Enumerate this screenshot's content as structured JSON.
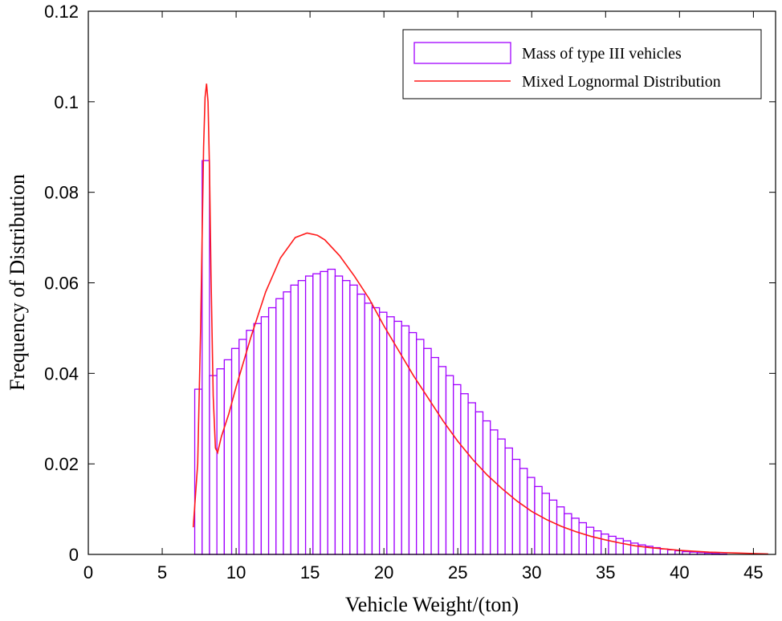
{
  "chart_data": {
    "type": "bar",
    "xlabel": "Vehicle Weight/(ton)",
    "ylabel": "Frequency of Distribution",
    "xlim": [
      0,
      46.5
    ],
    "ylim": [
      0,
      0.12
    ],
    "xticks": [
      0,
      5,
      10,
      15,
      20,
      25,
      30,
      35,
      40,
      45
    ],
    "yticks": [
      0,
      0.02,
      0.04,
      0.06,
      0.08,
      0.1,
      0.12
    ],
    "xtick_labels": [
      "0",
      "5",
      "10",
      "15",
      "20",
      "25",
      "30",
      "35",
      "40",
      "45"
    ],
    "ytick_labels": [
      "0",
      "0.02",
      "0.04",
      "0.06",
      "0.08",
      "0.1",
      "0.12"
    ],
    "legend_position": "top-right",
    "colors": {
      "histogram": "#a100ff",
      "fit_line": "#ff1a1a",
      "frame": "#000000"
    },
    "series": [
      {
        "name": "Mass of type III vehicles",
        "kind": "histogram",
        "bin_start": 7.2,
        "bin_width": 0.5,
        "values": [
          0.0365,
          0.087,
          0.0395,
          0.041,
          0.043,
          0.0455,
          0.0475,
          0.0495,
          0.051,
          0.0525,
          0.0545,
          0.0565,
          0.058,
          0.0595,
          0.0605,
          0.0615,
          0.062,
          0.0625,
          0.063,
          0.0615,
          0.0605,
          0.0595,
          0.0575,
          0.0555,
          0.0545,
          0.0535,
          0.0525,
          0.0515,
          0.0505,
          0.049,
          0.0475,
          0.0455,
          0.0435,
          0.0415,
          0.0395,
          0.0375,
          0.0355,
          0.0335,
          0.0315,
          0.0295,
          0.0275,
          0.0255,
          0.0235,
          0.021,
          0.019,
          0.017,
          0.015,
          0.0135,
          0.012,
          0.0105,
          0.009,
          0.008,
          0.007,
          0.006,
          0.0052,
          0.0045,
          0.004,
          0.0035,
          0.003,
          0.0025,
          0.0021,
          0.0018,
          0.0015,
          0.0012,
          0.001,
          0.0008,
          0.0006,
          0.0005,
          0.0004,
          0.0003,
          0.0002,
          0.0001
        ]
      },
      {
        "name": "Mixed Lognormal Distribution",
        "kind": "line",
        "x": [
          7.1,
          7.4,
          7.6,
          7.8,
          7.9,
          8.0,
          8.1,
          8.2,
          8.3,
          8.45,
          8.6,
          8.75,
          9.0,
          9.5,
          10,
          11,
          12,
          13,
          14,
          14.8,
          15.5,
          16,
          17,
          18,
          19,
          20,
          21,
          22,
          23,
          24,
          25,
          26,
          27,
          28,
          29,
          30,
          31,
          32,
          33,
          34,
          35,
          36,
          37,
          38,
          39,
          40,
          41,
          42,
          43,
          44,
          45,
          46
        ],
        "y": [
          0.006,
          0.02,
          0.05,
          0.09,
          0.101,
          0.104,
          0.1,
          0.085,
          0.062,
          0.035,
          0.0235,
          0.0225,
          0.026,
          0.031,
          0.037,
          0.048,
          0.058,
          0.0655,
          0.07,
          0.071,
          0.0705,
          0.0695,
          0.066,
          0.0615,
          0.0565,
          0.0505,
          0.045,
          0.0395,
          0.0345,
          0.0295,
          0.025,
          0.021,
          0.0175,
          0.0145,
          0.0118,
          0.0095,
          0.0077,
          0.0062,
          0.005,
          0.004,
          0.0032,
          0.0025,
          0.0019,
          0.0015,
          0.0012,
          0.0009,
          0.0007,
          0.0005,
          0.0004,
          0.0003,
          0.0002,
          0.0001
        ]
      }
    ]
  }
}
